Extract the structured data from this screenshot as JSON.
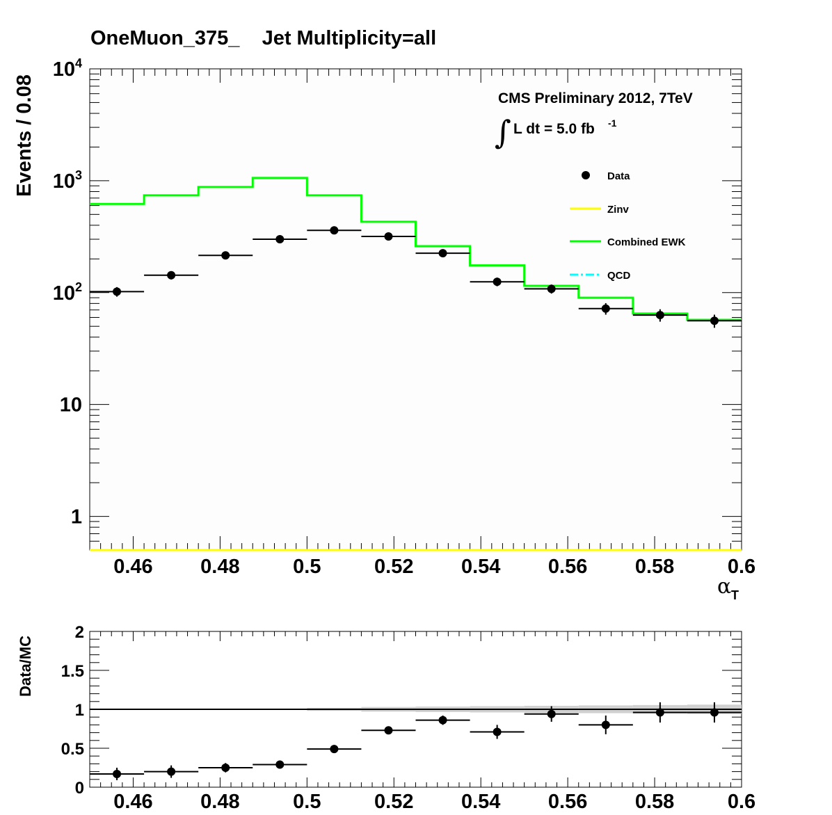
{
  "title": "OneMuon_375_    Jet Multiplicity=all",
  "label": {
    "line1": "CMS Preliminary 2012, 7TeV",
    "lumi_prefix": "L dt = 5.0 fb",
    "lumi_exp": "-1"
  },
  "chart_data": [
    {
      "type": "line",
      "panel": "main",
      "ylabel": "Events / 0.08",
      "xlabel": "α",
      "xlabel_sub": "T",
      "xlim": [
        0.45,
        0.6
      ],
      "ylim": [
        0.5,
        10000
      ],
      "yscale": "log",
      "bin_edges": [
        0.45,
        0.4625,
        0.475,
        0.4875,
        0.5,
        0.5125,
        0.525,
        0.5375,
        0.55,
        0.5625,
        0.575,
        0.5875,
        0.6
      ],
      "x_ticks": [
        "0.46",
        "0.48",
        "0.5",
        "0.52",
        "0.54",
        "0.56",
        "0.58",
        "0.6"
      ],
      "x_tick_values": [
        0.46,
        0.48,
        0.5,
        0.52,
        0.54,
        0.56,
        0.58,
        0.6
      ],
      "y_ticks": [
        {
          "value": 1,
          "base": "1",
          "exp": ""
        },
        {
          "value": 10,
          "base": "10",
          "exp": ""
        },
        {
          "value": 100,
          "base": "10",
          "exp": "2"
        },
        {
          "value": 1000,
          "base": "10",
          "exp": "3"
        },
        {
          "value": 10000,
          "base": "10",
          "exp": "4"
        }
      ],
      "legend": [
        {
          "name": "Data",
          "kind": "marker",
          "color": "#000000"
        },
        {
          "name": "Zinv",
          "kind": "line",
          "color": "#ffff00"
        },
        {
          "name": "Combined EWK",
          "kind": "line",
          "color": "#00ff00"
        },
        {
          "name": "QCD",
          "kind": "dashdot",
          "color": "#00ffff"
        }
      ],
      "series": [
        {
          "name": "Zinv",
          "kind": "hist",
          "color": "#ffff00",
          "values": [
            0.5,
            0.5,
            0.5,
            0.5,
            0.5,
            0.5,
            0.5,
            0.5,
            0.5,
            0.5,
            0.5,
            0.5
          ]
        },
        {
          "name": "Combined EWK",
          "kind": "hist",
          "color": "#00ff00",
          "values": [
            620,
            740,
            880,
            1060,
            740,
            430,
            260,
            175,
            115,
            90,
            65,
            57
          ]
        },
        {
          "name": "Data",
          "kind": "points",
          "color": "#000000",
          "values": [
            102,
            143,
            215,
            300,
            360,
            318,
            225,
            125,
            108,
            72,
            63,
            56
          ],
          "errors": [
            10,
            12,
            15,
            17,
            19,
            18,
            15,
            11,
            10,
            8.5,
            8,
            7.5
          ]
        }
      ]
    },
    {
      "type": "scatter",
      "panel": "ratio",
      "ylabel": "Data/MC",
      "xlim": [
        0.45,
        0.6
      ],
      "ylim": [
        0,
        2
      ],
      "x_ticks": [
        "0.46",
        "0.48",
        "0.5",
        "0.52",
        "0.54",
        "0.56",
        "0.58",
        "0.6"
      ],
      "x_tick_values": [
        0.46,
        0.48,
        0.5,
        0.52,
        0.54,
        0.56,
        0.58,
        0.6
      ],
      "y_ticks": [
        {
          "value": 0,
          "label": "0"
        },
        {
          "value": 0.5,
          "label": "0.5"
        },
        {
          "value": 1,
          "label": "1"
        },
        {
          "value": 1.5,
          "label": "1.5"
        },
        {
          "value": 2,
          "label": "2"
        }
      ],
      "bin_edges": [
        0.45,
        0.4625,
        0.475,
        0.4875,
        0.5,
        0.5125,
        0.525,
        0.5375,
        0.55,
        0.5625,
        0.575,
        0.5875,
        0.6
      ],
      "reference_line": 1,
      "band_half_width": [
        0.0,
        0.0,
        0.0,
        0.0,
        0.02,
        0.03,
        0.035,
        0.04,
        0.045,
        0.05,
        0.055,
        0.06
      ],
      "values": [
        0.17,
        0.2,
        0.25,
        0.29,
        0.49,
        0.73,
        0.86,
        0.71,
        0.94,
        0.8,
        0.96,
        0.96
      ],
      "errors": [
        0.08,
        0.08,
        0.06,
        0.04,
        0.03,
        0.04,
        0.06,
        0.09,
        0.1,
        0.12,
        0.13,
        0.13
      ]
    }
  ]
}
